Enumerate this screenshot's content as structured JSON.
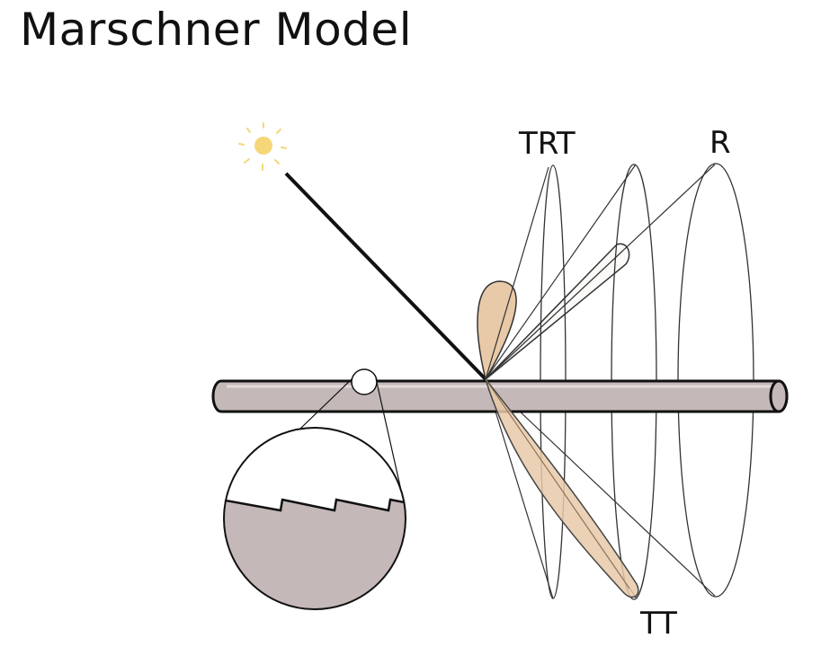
{
  "slide": {
    "title": "Marschner Model"
  },
  "diagram": {
    "labels": {
      "r": "R",
      "trt": "TRT",
      "tt": "TT"
    },
    "colors": {
      "hair_fill": "#c4b8b8",
      "lobe_fill": "#e8c9a8",
      "sun": "#f5d77a",
      "stroke": "#111111"
    },
    "icons": {
      "light_source": "sun-icon"
    }
  }
}
